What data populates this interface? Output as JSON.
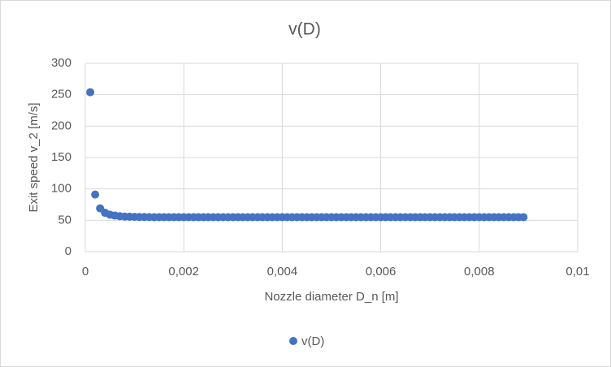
{
  "chart_data": {
    "type": "scatter",
    "title": "v(D)",
    "x_label": "Nozzle diameter D_n [m]",
    "y_label": "Exit speed v_2 [m/s]",
    "series": [
      {
        "name": "v(D)",
        "color": "#4472c4",
        "x": [
          0.0001,
          0.0002,
          0.0003,
          0.0004,
          0.0005,
          0.0006,
          0.0007,
          0.0008,
          0.0009,
          0.001,
          0.0011,
          0.0012,
          0.0013,
          0.0014,
          0.0015,
          0.0016,
          0.0017,
          0.0018,
          0.0019,
          0.002,
          0.0021,
          0.0022,
          0.0023,
          0.0024,
          0.0025,
          0.0026,
          0.0027,
          0.0028,
          0.0029,
          0.003,
          0.0031,
          0.0032,
          0.0033,
          0.0034,
          0.0035,
          0.0036,
          0.0037,
          0.0038,
          0.0039,
          0.004,
          0.0041,
          0.0042,
          0.0043,
          0.0044,
          0.0045,
          0.0046,
          0.0047,
          0.0048,
          0.0049,
          0.005,
          0.0051,
          0.0052,
          0.0053,
          0.0054,
          0.0055,
          0.0056,
          0.0057,
          0.0058,
          0.0059,
          0.006,
          0.0061,
          0.0062,
          0.0063,
          0.0064,
          0.0065,
          0.0066,
          0.0067,
          0.0068,
          0.0069,
          0.007,
          0.0071,
          0.0072,
          0.0073,
          0.0074,
          0.0075,
          0.0076,
          0.0077,
          0.0078,
          0.0079,
          0.008,
          0.0081,
          0.0082,
          0.0083,
          0.0084,
          0.0085,
          0.0086,
          0.0087,
          0.0088,
          0.0089
        ],
        "values": [
          254,
          91,
          69,
          62,
          59,
          57.5,
          56.5,
          56,
          55.7,
          55.5,
          55.3,
          55.2,
          55.1,
          55,
          55,
          55,
          55,
          55,
          55,
          55,
          55,
          55,
          55,
          55,
          55,
          55,
          55,
          55,
          55,
          55,
          55,
          55,
          55,
          55,
          55,
          55,
          55,
          55,
          55,
          55,
          55,
          55,
          55,
          55,
          55,
          55,
          55,
          55,
          55,
          55,
          55,
          55,
          55,
          55,
          55,
          55,
          55,
          55,
          55,
          55,
          55,
          55,
          55,
          55,
          55,
          55,
          55,
          55,
          55,
          55,
          55,
          55,
          55,
          55,
          55,
          55,
          55,
          55,
          55,
          55,
          55,
          55,
          55,
          55,
          55,
          55,
          55,
          55,
          55
        ]
      }
    ],
    "xlim": [
      0,
      0.01
    ],
    "xticks": [
      0,
      {
        "value": 0.002,
        "label": "0,002"
      },
      {
        "value": 0.004,
        "label": "0,004"
      },
      {
        "value": 0.006,
        "label": "0,006"
      },
      {
        "value": 0.008,
        "label": "0,008"
      },
      {
        "value": 0.01,
        "label": "0,01"
      }
    ],
    "ylim": [
      0,
      300
    ],
    "yticks": [
      0,
      50,
      100,
      150,
      200,
      250,
      300
    ],
    "grid": true,
    "legend": "bottom"
  }
}
